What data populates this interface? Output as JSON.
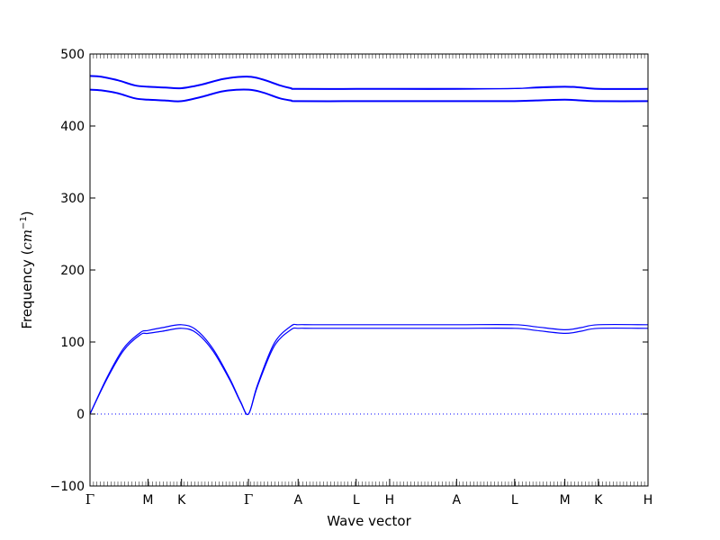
{
  "chart_data": {
    "type": "line",
    "title": "",
    "xlabel": "Wave vector",
    "ylabel": "Frequency",
    "ylabel_unit": "cm",
    "ylabel_unit_exp": "−1",
    "ylim": [
      -100,
      500
    ],
    "yticks": [
      -100,
      0,
      100,
      200,
      300,
      400,
      500
    ],
    "grid": false,
    "zero_line": {
      "y": 0,
      "style": "dotted",
      "color": "#0000ff"
    },
    "line_color": "#0000ff",
    "xlim": [
      0,
      1
    ],
    "high_symmetry_points": [
      {
        "label": "Γ",
        "x": 0.0
      },
      {
        "label": "M",
        "x": 0.104
      },
      {
        "label": "K",
        "x": 0.164
      },
      {
        "label": "Γ",
        "x": 0.284
      },
      {
        "label": "A",
        "x": 0.373
      },
      {
        "label": "L",
        "x": 0.477
      },
      {
        "label": "H",
        "x": 0.537
      },
      {
        "label": "A",
        "x": 0.657
      },
      {
        "label": "L",
        "x": 0.761
      },
      {
        "label": "M",
        "x": 0.851
      },
      {
        "label": "K",
        "x": 0.911
      },
      {
        "label": "H",
        "x": 1.0
      }
    ],
    "series": [
      {
        "x": [
          0,
          0.03,
          0.06,
          0.09,
          0.104,
          0.13,
          0.164,
          0.19,
          0.22,
          0.25,
          0.27,
          0.284,
          0.3,
          0.33,
          0.36,
          0.373,
          0.4,
          0.477,
          0.537,
          0.657,
          0.761,
          0.8,
          0.851,
          0.88,
          0.911,
          1.0
        ],
        "y": [
          0,
          48,
          88,
          110,
          112,
          115,
          119,
          113,
          88,
          48,
          16,
          0,
          38,
          94,
          117,
          119,
          119,
          119,
          119,
          119,
          119,
          116,
          112,
          115,
          119,
          119
        ]
      },
      {
        "x": [
          0,
          0.03,
          0.06,
          0.09,
          0.104,
          0.13,
          0.164,
          0.19,
          0.22,
          0.25,
          0.27,
          0.284,
          0.3,
          0.33,
          0.36,
          0.373,
          0.4,
          0.477,
          0.537,
          0.657,
          0.761,
          0.8,
          0.851,
          0.88,
          0.911,
          1.0
        ],
        "y": [
          0,
          50,
          91,
          113,
          116,
          120,
          124,
          117,
          91,
          50,
          17,
          0,
          40,
          98,
          122,
          124,
          124,
          124,
          124,
          124,
          124,
          121,
          117,
          120,
          124,
          124
        ]
      },
      {
        "x": [
          0,
          0.02,
          0.05,
          0.08,
          0.104,
          0.134,
          0.164,
          0.2,
          0.24,
          0.284,
          0.31,
          0.34,
          0.36,
          0.373,
          0.477,
          0.537,
          0.657,
          0.761,
          0.8,
          0.851,
          0.88,
          0.911,
          1.0
        ],
        "y": [
          450,
          449,
          445,
          438,
          436,
          435,
          434,
          440,
          448,
          450,
          446,
          438,
          435,
          434,
          434,
          434,
          434,
          434,
          435,
          436,
          435,
          434,
          434
        ]
      },
      {
        "x": [
          0,
          0.02,
          0.05,
          0.08,
          0.104,
          0.134,
          0.164,
          0.2,
          0.24,
          0.284,
          0.31,
          0.34,
          0.36,
          0.373,
          0.477,
          0.537,
          0.657,
          0.761,
          0.8,
          0.851,
          0.88,
          0.911,
          1.0
        ],
        "y": [
          451,
          450,
          446,
          439,
          437,
          436,
          435,
          441,
          449,
          451,
          447,
          439,
          436,
          435,
          435,
          435,
          435,
          435,
          436,
          437,
          436,
          435,
          435
        ]
      },
      {
        "x": [
          0,
          0.02,
          0.05,
          0.08,
          0.104,
          0.134,
          0.164,
          0.2,
          0.24,
          0.284,
          0.31,
          0.34,
          0.36,
          0.373,
          0.477,
          0.537,
          0.657,
          0.761,
          0.8,
          0.851,
          0.88,
          0.911,
          1.0
        ],
        "y": [
          469,
          468,
          463,
          456,
          454,
          453,
          452,
          457,
          465,
          468,
          464,
          456,
          452,
          451,
          451,
          451,
          451,
          452,
          453,
          454,
          453,
          451,
          451
        ]
      },
      {
        "x": [
          0,
          0.02,
          0.05,
          0.08,
          0.104,
          0.134,
          0.164,
          0.2,
          0.24,
          0.284,
          0.31,
          0.34,
          0.36,
          0.373,
          0.477,
          0.537,
          0.657,
          0.761,
          0.8,
          0.851,
          0.88,
          0.911,
          1.0
        ],
        "y": [
          470,
          469,
          464,
          457,
          455,
          454,
          453,
          458,
          466,
          469,
          465,
          457,
          453,
          452,
          452,
          452,
          452,
          452,
          454,
          455,
          454,
          452,
          452
        ]
      }
    ]
  }
}
